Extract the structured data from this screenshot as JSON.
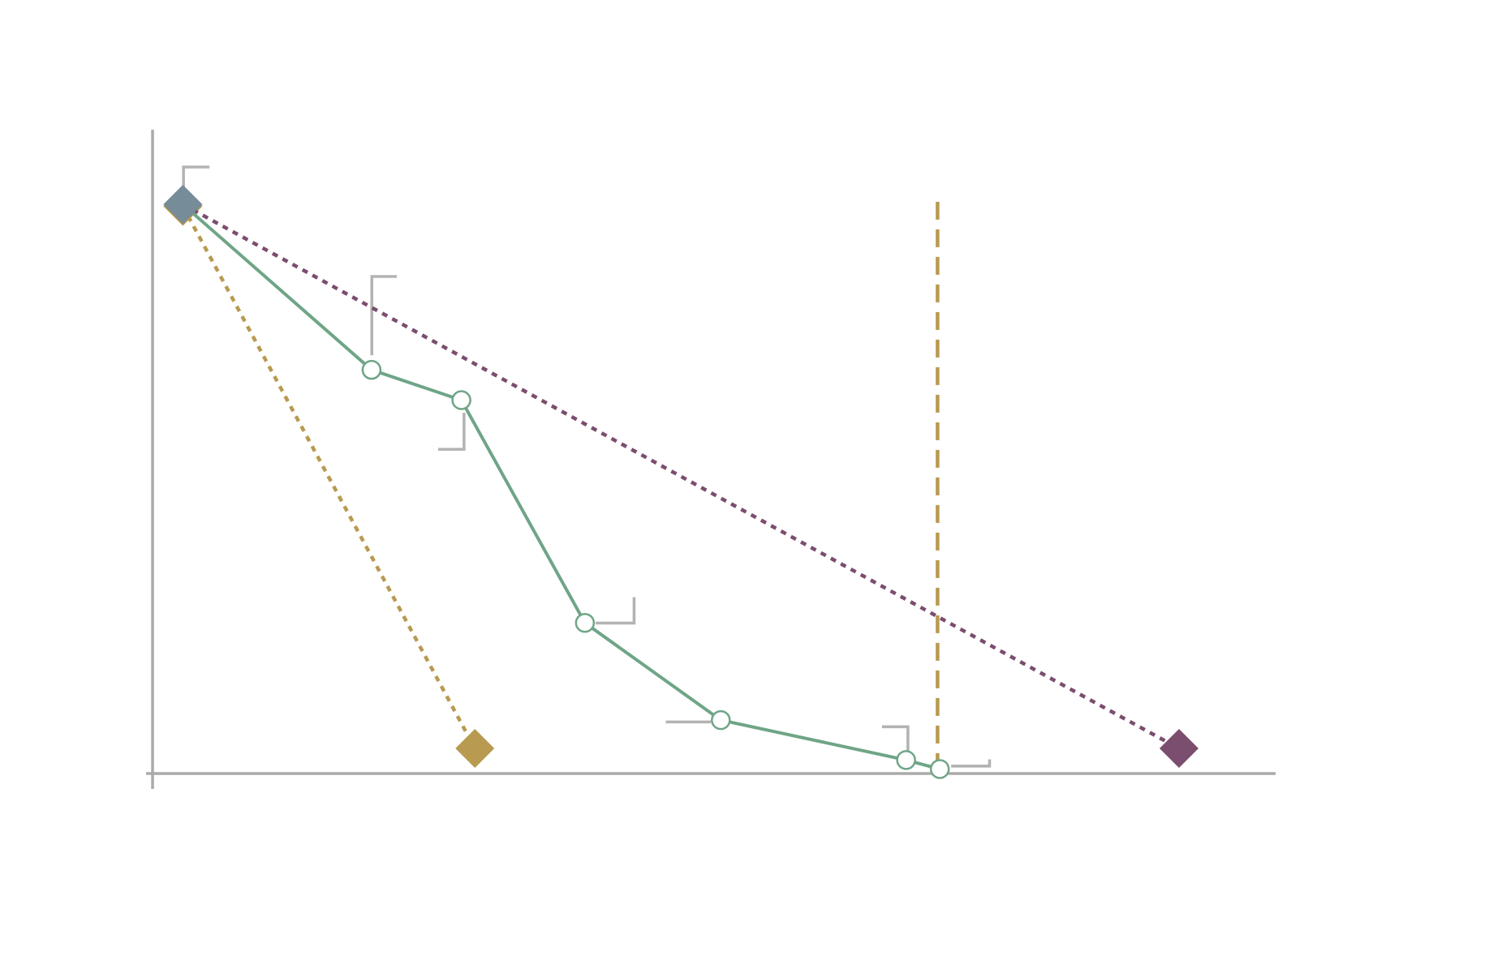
{
  "chart_data": {
    "type": "line",
    "xlim": [
      0,
      100
    ],
    "ylim": [
      0,
      100
    ],
    "grid": false,
    "series": [
      {
        "color": "#b89a50",
        "style": "dashed",
        "marker": "none",
        "x": [
          69.9,
          69.9
        ],
        "values": [
          88.8,
          0
        ]
      },
      {
        "color": "#b89a50",
        "style": "dotted",
        "marker": "diamond",
        "x": [
          2.7,
          28.7
        ],
        "values": [
          88.1,
          3.9
        ]
      },
      {
        "color": "#7b4d6e",
        "style": "dotted",
        "marker": "diamond",
        "x": [
          2.7,
          91.4
        ],
        "values": [
          88.4,
          3.9
        ]
      },
      {
        "color": "#6fa587",
        "style": "solid",
        "marker": "circle",
        "x": [
          2.7,
          19.5,
          27.5,
          38.5,
          50.6,
          67.1,
          70.1
        ],
        "values": [
          88.4,
          62.7,
          58.0,
          23.4,
          8.3,
          2.1,
          0.7
        ]
      },
      {
        "color": "#778c99",
        "style": "none",
        "marker": "diamond",
        "x": [
          2.7
        ],
        "values": [
          88.4
        ]
      }
    ]
  }
}
